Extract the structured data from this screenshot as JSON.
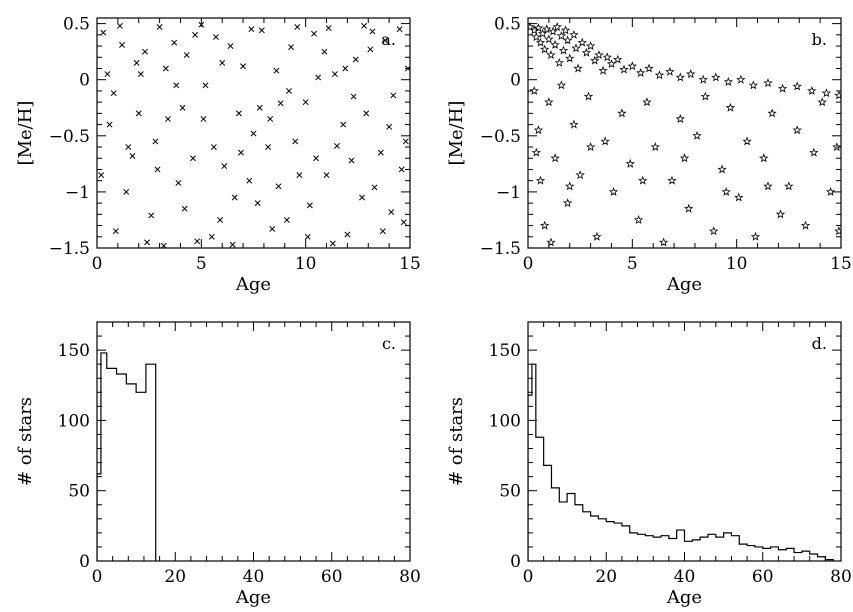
{
  "figure": {
    "background": "#ffffff",
    "ink": "#000000"
  },
  "chart_data": [
    {
      "panel": "a",
      "type": "scatter",
      "marker": "cross",
      "panel_label": "a.",
      "xlabel": "Age",
      "ylabel": "[Me/H]",
      "xlim": [
        0,
        15
      ],
      "ylim": [
        -1.5,
        0.55
      ],
      "xticks": [
        0,
        5,
        10,
        15
      ],
      "yticks": [
        0.5,
        0,
        -0.5,
        -1,
        -1.5
      ],
      "ytick_labels": [
        "0.5",
        "0",
        "−0.5",
        "−1",
        "−1.5"
      ],
      "points": [
        [
          0.3,
          0.42
        ],
        [
          0.8,
          -0.12
        ],
        [
          1.2,
          0.31
        ],
        [
          1.7,
          -0.68
        ],
        [
          2.1,
          0.05
        ],
        [
          2.6,
          -1.21
        ],
        [
          3.0,
          0.47
        ],
        [
          3.4,
          -0.35
        ],
        [
          3.9,
          -0.92
        ],
        [
          4.3,
          0.22
        ],
        [
          4.8,
          -1.44
        ],
        [
          5.2,
          -0.05
        ],
        [
          5.7,
          0.38
        ],
        [
          6.1,
          -0.77
        ],
        [
          6.6,
          -1.05
        ],
        [
          7.0,
          0.12
        ],
        [
          7.5,
          -0.48
        ],
        [
          7.9,
          0.44
        ],
        [
          8.4,
          -1.33
        ],
        [
          8.8,
          -0.21
        ],
        [
          9.3,
          0.29
        ],
        [
          9.7,
          -0.85
        ],
        [
          10.2,
          -1.12
        ],
        [
          10.6,
          0.02
        ],
        [
          11.1,
          0.46
        ],
        [
          11.5,
          -0.59
        ],
        [
          12.0,
          -1.38
        ],
        [
          12.4,
          0.18
        ],
        [
          12.9,
          -0.3
        ],
        [
          13.3,
          -0.96
        ],
        [
          13.8,
          0.35
        ],
        [
          14.2,
          -0.14
        ],
        [
          14.7,
          -1.27
        ],
        [
          0.6,
          -0.4
        ],
        [
          1.4,
          -1.0
        ],
        [
          2.3,
          0.25
        ],
        [
          3.2,
          -1.48
        ],
        [
          4.1,
          -0.25
        ],
        [
          5.0,
          0.49
        ],
        [
          5.9,
          -1.25
        ],
        [
          6.8,
          -0.3
        ],
        [
          7.7,
          -1.1
        ],
        [
          8.6,
          0.08
        ],
        [
          9.5,
          -0.55
        ],
        [
          10.4,
          0.41
        ],
        [
          11.3,
          -1.46
        ],
        [
          12.2,
          -0.72
        ],
        [
          13.1,
          0.27
        ],
        [
          14.0,
          -0.42
        ],
        [
          14.9,
          0.1
        ],
        [
          0.9,
          -1.35
        ],
        [
          1.9,
          0.15
        ],
        [
          2.8,
          -0.55
        ],
        [
          3.7,
          0.33
        ],
        [
          4.6,
          -0.7
        ],
        [
          5.5,
          -1.4
        ],
        [
          6.4,
          0.3
        ],
        [
          7.3,
          -0.9
        ],
        [
          8.2,
          -0.6
        ],
        [
          9.1,
          -1.25
        ],
        [
          10.0,
          -0.2
        ],
        [
          10.9,
          0.25
        ],
        [
          11.8,
          -0.4
        ],
        [
          12.7,
          -1.05
        ],
        [
          13.6,
          -0.65
        ],
        [
          14.5,
          0.45
        ],
        [
          0.2,
          -0.85
        ],
        [
          1.1,
          0.48
        ],
        [
          2.0,
          -0.3
        ],
        [
          2.9,
          -0.8
        ],
        [
          3.8,
          -0.05
        ],
        [
          4.7,
          0.4
        ],
        [
          5.6,
          -0.6
        ],
        [
          6.5,
          -1.47
        ],
        [
          7.4,
          0.45
        ],
        [
          8.3,
          -0.35
        ],
        [
          9.2,
          -0.1
        ],
        [
          10.1,
          -1.4
        ],
        [
          11.0,
          -0.85
        ],
        [
          11.9,
          0.1
        ],
        [
          12.8,
          0.48
        ],
        [
          13.7,
          -1.35
        ],
        [
          14.6,
          -0.8
        ],
        [
          0.5,
          0.05
        ],
        [
          1.5,
          -0.6
        ],
        [
          2.4,
          -1.45
        ],
        [
          3.3,
          0.1
        ],
        [
          4.2,
          -1.15
        ],
        [
          5.1,
          -0.35
        ],
        [
          6.0,
          0.15
        ],
        [
          6.9,
          -0.65
        ],
        [
          7.8,
          -0.25
        ],
        [
          8.7,
          -0.95
        ],
        [
          9.6,
          0.47
        ],
        [
          10.5,
          -0.7
        ],
        [
          11.4,
          0.05
        ],
        [
          12.3,
          -0.15
        ],
        [
          13.2,
          0.43
        ],
        [
          14.1,
          -1.18
        ],
        [
          14.8,
          -0.55
        ]
      ]
    },
    {
      "panel": "b",
      "type": "scatter",
      "marker": "star",
      "panel_label": "b.",
      "xlabel": "Age",
      "ylabel": "[Me/H]",
      "xlim": [
        0,
        15
      ],
      "ylim": [
        -1.5,
        0.55
      ],
      "xticks": [
        0,
        5,
        10,
        15
      ],
      "yticks": [
        0.5,
        0,
        -0.5,
        -1,
        -1.5
      ],
      "ytick_labels": [
        "0.5",
        "0",
        "−0.5",
        "−1",
        "−1.5"
      ],
      "points": [
        [
          0.1,
          0.47
        ],
        [
          0.3,
          0.44
        ],
        [
          0.4,
          0.38
        ],
        [
          0.5,
          0.46
        ],
        [
          0.6,
          0.33
        ],
        [
          0.7,
          0.41
        ],
        [
          0.8,
          0.27
        ],
        [
          0.9,
          0.45
        ],
        [
          1.0,
          0.36
        ],
        [
          1.1,
          0.22
        ],
        [
          1.2,
          0.43
        ],
        [
          1.3,
          0.31
        ],
        [
          1.4,
          0.47
        ],
        [
          1.5,
          0.15
        ],
        [
          1.6,
          0.39
        ],
        [
          1.7,
          0.26
        ],
        [
          1.8,
          0.44
        ],
        [
          1.9,
          0.35
        ],
        [
          2.0,
          0.19
        ],
        [
          2.2,
          0.4
        ],
        [
          2.3,
          0.28
        ],
        [
          2.4,
          0.1
        ],
        [
          2.6,
          0.33
        ],
        [
          2.8,
          0.24
        ],
        [
          3.0,
          0.3
        ],
        [
          3.2,
          0.17
        ],
        [
          3.4,
          0.22
        ],
        [
          3.6,
          0.08
        ],
        [
          3.8,
          0.2
        ],
        [
          4.0,
          0.14
        ],
        [
          4.3,
          0.18
        ],
        [
          4.6,
          0.09
        ],
        [
          5.0,
          0.12
        ],
        [
          5.4,
          0.06
        ],
        [
          5.8,
          0.1
        ],
        [
          6.3,
          0.04
        ],
        [
          6.8,
          0.07
        ],
        [
          7.3,
          0.02
        ],
        [
          7.8,
          0.05
        ],
        [
          8.4,
          0.0
        ],
        [
          9.0,
          0.02
        ],
        [
          9.6,
          -0.02
        ],
        [
          10.2,
          0.0
        ],
        [
          10.8,
          -0.05
        ],
        [
          11.5,
          -0.03
        ],
        [
          12.2,
          -0.08
        ],
        [
          12.9,
          -0.06
        ],
        [
          13.6,
          -0.1
        ],
        [
          14.3,
          -0.12
        ],
        [
          14.9,
          -0.14
        ],
        [
          0.3,
          -0.1
        ],
        [
          0.5,
          -0.45
        ],
        [
          0.6,
          -0.9
        ],
        [
          0.8,
          -1.3
        ],
        [
          1.0,
          -0.2
        ],
        [
          1.3,
          -0.7
        ],
        [
          1.6,
          -0.05
        ],
        [
          1.9,
          -1.1
        ],
        [
          2.2,
          -0.4
        ],
        [
          2.5,
          -0.85
        ],
        [
          2.9,
          -0.15
        ],
        [
          3.3,
          -1.4
        ],
        [
          3.7,
          -0.55
        ],
        [
          4.1,
          -1.0
        ],
        [
          4.5,
          -0.3
        ],
        [
          4.9,
          -0.75
        ],
        [
          5.3,
          -1.25
        ],
        [
          5.7,
          -0.2
        ],
        [
          6.1,
          -0.6
        ],
        [
          6.5,
          -1.45
        ],
        [
          6.9,
          -0.9
        ],
        [
          7.3,
          -0.35
        ],
        [
          7.7,
          -1.15
        ],
        [
          8.1,
          -0.5
        ],
        [
          8.5,
          -0.15
        ],
        [
          8.9,
          -1.35
        ],
        [
          9.3,
          -0.8
        ],
        [
          9.7,
          -0.25
        ],
        [
          10.1,
          -1.05
        ],
        [
          10.5,
          -0.55
        ],
        [
          10.9,
          -1.4
        ],
        [
          11.3,
          -0.7
        ],
        [
          11.7,
          -0.3
        ],
        [
          12.1,
          -1.2
        ],
        [
          12.5,
          -0.95
        ],
        [
          12.9,
          -0.45
        ],
        [
          13.3,
          -1.3
        ],
        [
          13.7,
          -0.65
        ],
        [
          14.1,
          -0.2
        ],
        [
          14.5,
          -1.0
        ],
        [
          14.8,
          -0.6
        ],
        [
          14.9,
          -1.35
        ],
        [
          0.4,
          -0.65
        ],
        [
          1.1,
          -1.45
        ],
        [
          2.0,
          -0.95
        ],
        [
          3.0,
          -0.6
        ],
        [
          5.5,
          -0.9
        ],
        [
          7.5,
          -0.7
        ],
        [
          9.5,
          -1.0
        ],
        [
          11.5,
          -0.95
        ]
      ]
    },
    {
      "panel": "c",
      "type": "histogram",
      "panel_label": "c.",
      "xlabel": "Age",
      "ylabel": "# of stars",
      "xlim": [
        0,
        80
      ],
      "ylim": [
        0,
        170
      ],
      "xticks": [
        0,
        20,
        40,
        60,
        80
      ],
      "yticks": [
        0,
        50,
        100,
        150
      ],
      "bin_edges": [
        0,
        1,
        2.5,
        5,
        7.5,
        10,
        12.5,
        15
      ],
      "counts": [
        62,
        148,
        137,
        133,
        126,
        120,
        140
      ]
    },
    {
      "panel": "d",
      "type": "histogram",
      "panel_label": "d.",
      "xlabel": "Age",
      "ylabel": "# of stars",
      "xlim": [
        0,
        80
      ],
      "ylim": [
        0,
        170
      ],
      "xticks": [
        0,
        20,
        40,
        60,
        80
      ],
      "yticks": [
        0,
        50,
        100,
        150
      ],
      "bin_edges": [
        0,
        1,
        2,
        4,
        6,
        8,
        10,
        12,
        14,
        16,
        18,
        20,
        22,
        24,
        26,
        28,
        30,
        32,
        34,
        36,
        38,
        40,
        42,
        44,
        46,
        48,
        50,
        52,
        54,
        56,
        58,
        60,
        62,
        64,
        66,
        68,
        70,
        72,
        74,
        76,
        78
      ],
      "counts": [
        118,
        140,
        88,
        68,
        52,
        42,
        48,
        40,
        35,
        32,
        30,
        28,
        27,
        25,
        20,
        19,
        18,
        17,
        18,
        16,
        22,
        14,
        15,
        17,
        19,
        17,
        20,
        18,
        12,
        11,
        10,
        9,
        10,
        8,
        9,
        6,
        7,
        5,
        3,
        1
      ]
    }
  ]
}
